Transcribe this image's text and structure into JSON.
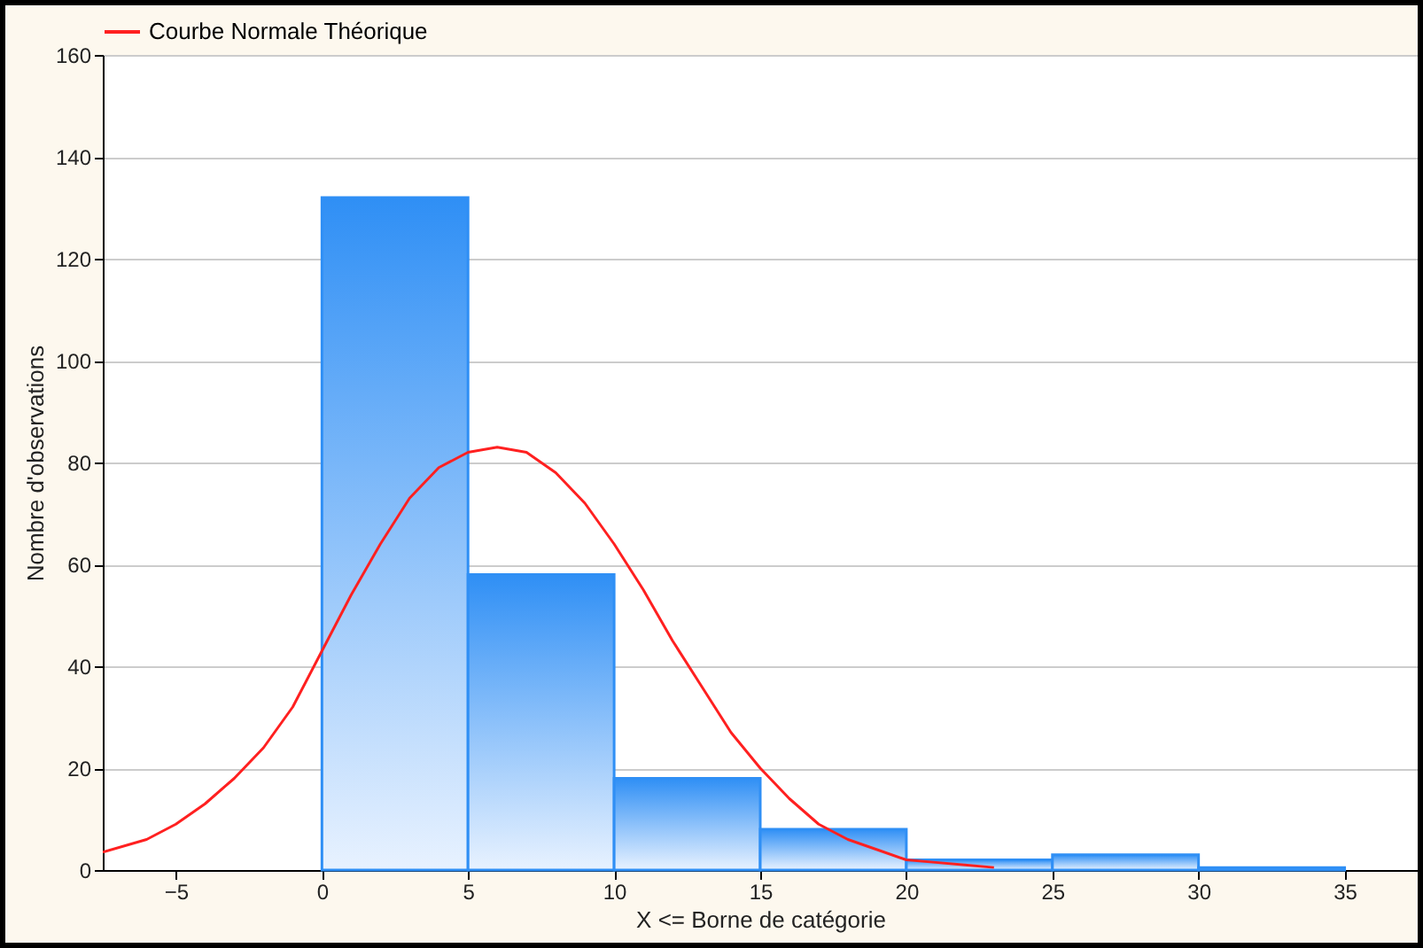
{
  "chart_data": {
    "type": "histogram",
    "xlabel": "X <= Borne de catégorie",
    "ylabel": "Nombre d'observations",
    "bins": [
      0,
      5,
      10,
      15,
      20,
      25,
      30,
      35
    ],
    "values": [
      132,
      58,
      18,
      8,
      2,
      3,
      0.5
    ],
    "color": "#2f8ff5",
    "series": [
      {
        "name": "Courbe Normale Théorique",
        "type": "line",
        "color": "#ff2020",
        "x": [
          -7.5,
          -6,
          -5,
          -4,
          -3,
          -2,
          -1,
          0,
          1,
          2,
          3,
          4,
          5,
          6,
          7,
          8,
          9,
          10,
          11,
          12,
          13,
          14,
          15,
          16,
          17,
          18,
          19,
          20,
          21,
          22,
          23
        ],
        "values": [
          3.5,
          6,
          9,
          13,
          18,
          24,
          32,
          43,
          54,
          64,
          73,
          79,
          82,
          83,
          82,
          78,
          72,
          64,
          55,
          45,
          36,
          27,
          20,
          14,
          9,
          6,
          4,
          2,
          1.5,
          1,
          0.5
        ]
      }
    ],
    "xlim": [
      -7.5,
      37.5
    ],
    "ylim": [
      0,
      160
    ],
    "xticks": [
      -5,
      0,
      5,
      10,
      15,
      20,
      25,
      30,
      35
    ],
    "yticks": [
      0,
      20,
      40,
      60,
      80,
      100,
      120,
      140,
      160
    ],
    "grid": "y",
    "legend": "top"
  }
}
